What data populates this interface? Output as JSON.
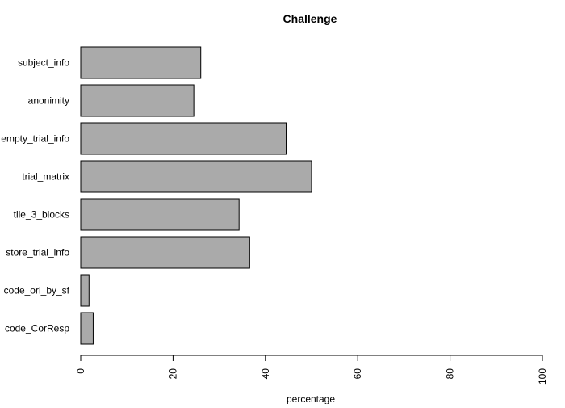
{
  "chart_data": {
    "type": "bar",
    "orientation": "horizontal",
    "title": "Challenge",
    "xlabel": "percentage",
    "ylabel": "",
    "categories": [
      "subject_info",
      "anonimity",
      "empty_trial_info",
      "trial_matrix",
      "tile_3_blocks",
      "store_trial_info",
      "code_ori_by_sf",
      "code_CorResp"
    ],
    "values": [
      26,
      24.5,
      44.5,
      50,
      34.3,
      36.6,
      1.8,
      2.7
    ],
    "xlim": [
      0,
      100
    ],
    "xticks": [
      0,
      20,
      40,
      60,
      80,
      100
    ],
    "grid": false,
    "bar_color": "#aaaaaa",
    "bar_border_color": "#000000"
  }
}
